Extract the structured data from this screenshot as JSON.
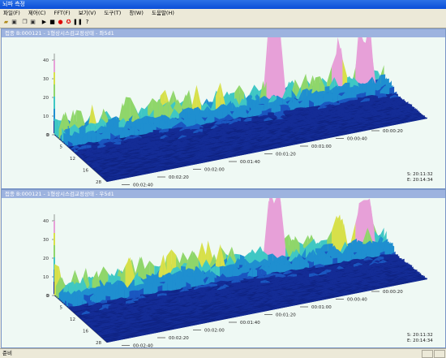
{
  "window": {
    "title": "뇌파 측정"
  },
  "menu": [
    "파일(F)",
    "제어(C)",
    "FFT(F)",
    "보기(V)",
    "도구(T)",
    "창(W)",
    "도움말(H)"
  ],
  "toolbar": [
    "open-icon",
    "save-icon",
    "copy-icon",
    "floppy-icon",
    "play-icon",
    "stop-icon",
    "record-icon",
    "gear-icon",
    "pause-icon",
    "help-icon"
  ],
  "colors": {
    "accent": "#0a4ed8",
    "plot_bg": "#eff9f4",
    "panel_title": "#9db3df"
  },
  "panels": [
    {
      "title": "접종 B:000121 - 1형상시스검교정상태 - 좌5d1",
      "z_ticks": [
        "40",
        "30",
        "20",
        "10",
        "0"
      ],
      "freq_ticks": [
        "0",
        "5",
        "12",
        "16",
        "28"
      ],
      "time_ticks": [
        "00:00:20",
        "00:00:40",
        "00:01:00",
        "00:01:20",
        "00:01:40",
        "00:02:00",
        "00:02:20",
        "00:02:40",
        "00:03:00"
      ],
      "time_start": "S: 20:11:32",
      "time_end": "E: 20:14:34"
    },
    {
      "title": "접종 B:000121 - 1형상시스검교정상태 - 우5d1",
      "z_ticks": [
        "40",
        "30",
        "20",
        "10",
        "0"
      ],
      "freq_ticks": [
        "0",
        "5",
        "12",
        "16",
        "28"
      ],
      "time_ticks": [
        "00:00:20",
        "00:00:40",
        "00:01:00",
        "00:01:20",
        "00:01:40",
        "00:02:00",
        "00:02:20",
        "00:02:40",
        "00:03:00"
      ],
      "time_start": "S: 20:11:32",
      "time_end": "E: 20:14:34"
    }
  ],
  "status": {
    "text": "준비"
  }
}
